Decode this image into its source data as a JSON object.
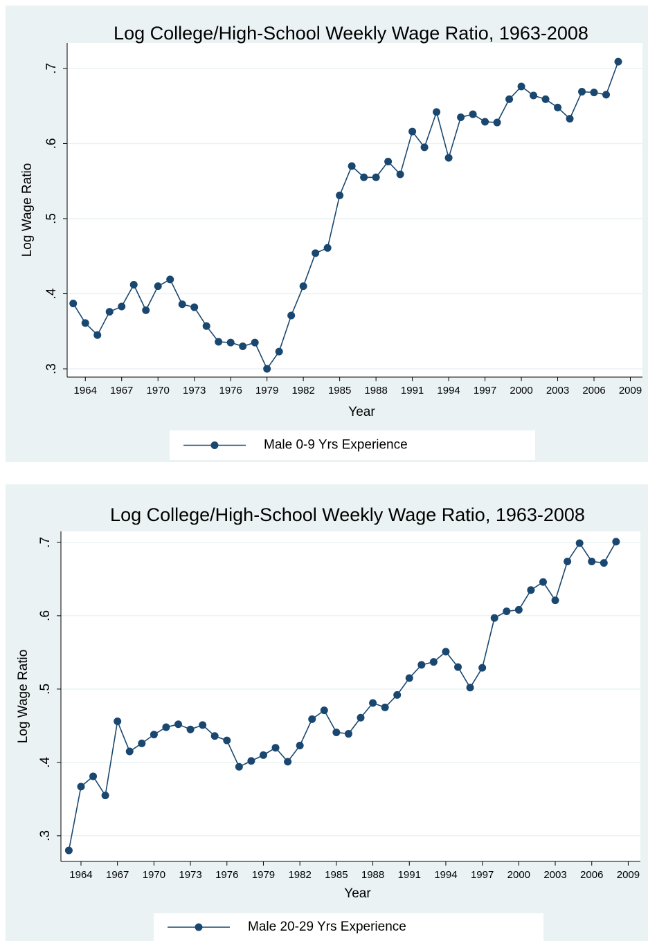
{
  "chart_data": [
    {
      "type": "line",
      "title": "Log College/High-School Weekly Wage Ratio, 1963-2008",
      "x_label": "Year",
      "y_label": "Log Wage Ratio",
      "x": [
        1963,
        1964,
        1965,
        1966,
        1967,
        1968,
        1969,
        1970,
        1971,
        1972,
        1973,
        1974,
        1975,
        1976,
        1977,
        1978,
        1979,
        1980,
        1981,
        1982,
        1983,
        1984,
        1985,
        1986,
        1987,
        1988,
        1989,
        1990,
        1991,
        1992,
        1993,
        1994,
        1995,
        1996,
        1997,
        1998,
        1999,
        2000,
        2001,
        2002,
        2003,
        2004,
        2005,
        2006,
        2007,
        2008
      ],
      "series": [
        {
          "name": "Male 0-9 Yrs Experience",
          "color": "#1a476f",
          "values": [
            0.387,
            0.361,
            0.345,
            0.376,
            0.383,
            0.412,
            0.378,
            0.41,
            0.419,
            0.386,
            0.382,
            0.357,
            0.336,
            0.335,
            0.33,
            0.335,
            0.3,
            0.323,
            0.371,
            0.41,
            0.454,
            0.461,
            0.531,
            0.57,
            0.555,
            0.555,
            0.576,
            0.559,
            0.616,
            0.595,
            0.642,
            0.581,
            0.635,
            0.639,
            0.629,
            0.628,
            0.659,
            0.676,
            0.664,
            0.659,
            0.648,
            0.633,
            0.669,
            0.668,
            0.665,
            0.709
          ]
        }
      ],
      "xlim": [
        1962.5,
        2010
      ],
      "xticks": [
        1964,
        1967,
        1970,
        1973,
        1976,
        1979,
        1982,
        1985,
        1988,
        1991,
        1994,
        1997,
        2000,
        2003,
        2006,
        2009
      ],
      "ylim": [
        0.289,
        0.734
      ],
      "yticks": [
        {
          "value": 0.3,
          "label": ".3"
        },
        {
          "value": 0.4,
          "label": ".4"
        },
        {
          "value": 0.5,
          "label": ".5"
        },
        {
          "value": 0.6,
          "label": ".6"
        },
        {
          "value": 0.7,
          "label": ".7"
        }
      ],
      "grid": true,
      "legend": "bottom"
    },
    {
      "type": "line",
      "title": "Log College/High-School Weekly Wage Ratio, 1963-2008",
      "x_label": "Year",
      "y_label": "Log Wage Ratio",
      "x": [
        1963,
        1964,
        1965,
        1966,
        1967,
        1968,
        1969,
        1970,
        1971,
        1972,
        1973,
        1974,
        1975,
        1976,
        1977,
        1978,
        1979,
        1980,
        1981,
        1982,
        1983,
        1984,
        1985,
        1986,
        1987,
        1988,
        1989,
        1990,
        1991,
        1992,
        1993,
        1994,
        1995,
        1996,
        1997,
        1998,
        1999,
        2000,
        2001,
        2002,
        2003,
        2004,
        2005,
        2006,
        2007,
        2008
      ],
      "series": [
        {
          "name": "Male 20-29 Yrs Experience",
          "color": "#1a476f",
          "values": [
            0.28,
            0.367,
            0.381,
            0.355,
            0.456,
            0.415,
            0.426,
            0.438,
            0.448,
            0.452,
            0.445,
            0.451,
            0.436,
            0.43,
            0.394,
            0.402,
            0.41,
            0.42,
            0.401,
            0.423,
            0.459,
            0.471,
            0.441,
            0.439,
            0.461,
            0.481,
            0.475,
            0.492,
            0.515,
            0.533,
            0.537,
            0.551,
            0.53,
            0.502,
            0.529,
            0.597,
            0.606,
            0.608,
            0.635,
            0.646,
            0.621,
            0.674,
            0.699,
            0.674,
            0.672,
            0.701
          ]
        }
      ],
      "xlim": [
        1962.35,
        2010
      ],
      "xticks": [
        1964,
        1967,
        1970,
        1973,
        1976,
        1979,
        1982,
        1985,
        1988,
        1991,
        1994,
        1997,
        2000,
        2003,
        2006,
        2009
      ],
      "ylim": [
        0.265,
        0.715
      ],
      "yticks": [
        {
          "value": 0.3,
          "label": ".3"
        },
        {
          "value": 0.4,
          "label": ".4"
        },
        {
          "value": 0.5,
          "label": ".5"
        },
        {
          "value": 0.6,
          "label": ".6"
        },
        {
          "value": 0.7,
          "label": ".7"
        }
      ],
      "grid": true,
      "legend": "bottom"
    }
  ]
}
